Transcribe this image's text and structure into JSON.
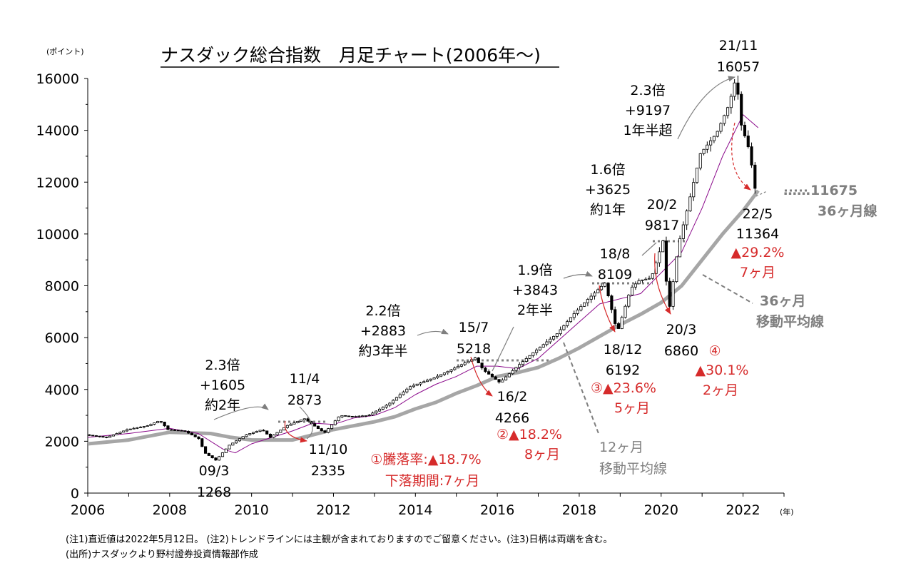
{
  "chart_data": {
    "type": "candlestick",
    "title": "ナスダック総合指数　月足チャート(2006年～)",
    "y_unit": "(ポイント)",
    "x_unit": "(年)",
    "ylim": [
      0,
      16000
    ],
    "y_ticks": [
      "0",
      "2000",
      "4000",
      "6000",
      "8000",
      "10000",
      "12000",
      "14000",
      "16000"
    ],
    "xlim": [
      2006,
      2023
    ],
    "x_ticks": [
      "2006",
      "2008",
      "2010",
      "2012",
      "2014",
      "2016",
      "2018",
      "2020",
      "2022"
    ],
    "series": [
      {
        "name": "月足 終値",
        "points": [
          [
            2006.0,
            2250
          ],
          [
            2006.5,
            2150
          ],
          [
            2007.0,
            2450
          ],
          [
            2007.5,
            2600
          ],
          [
            2007.8,
            2800
          ],
          [
            2008.0,
            2450
          ],
          [
            2008.4,
            2400
          ],
          [
            2008.75,
            2100
          ],
          [
            2008.9,
            1550
          ],
          [
            2009.17,
            1268
          ],
          [
            2009.5,
            1850
          ],
          [
            2009.9,
            2250
          ],
          [
            2010.3,
            2450
          ],
          [
            2010.5,
            2150
          ],
          [
            2010.9,
            2600
          ],
          [
            2011.33,
            2873
          ],
          [
            2011.7,
            2450
          ],
          [
            2011.83,
            2335
          ],
          [
            2012.2,
            3000
          ],
          [
            2012.5,
            2950
          ],
          [
            2012.9,
            3000
          ],
          [
            2013.4,
            3450
          ],
          [
            2013.9,
            4100
          ],
          [
            2014.5,
            4450
          ],
          [
            2014.9,
            4750
          ],
          [
            2015.5,
            5218
          ],
          [
            2015.7,
            4750
          ],
          [
            2016.1,
            4266
          ],
          [
            2016.5,
            4850
          ],
          [
            2016.9,
            5400
          ],
          [
            2017.5,
            6150
          ],
          [
            2017.9,
            6900
          ],
          [
            2018.2,
            7400
          ],
          [
            2018.67,
            8109
          ],
          [
            2018.8,
            7300
          ],
          [
            2018.97,
            6192
          ],
          [
            2019.3,
            7900
          ],
          [
            2019.5,
            8200
          ],
          [
            2019.8,
            8300
          ],
          [
            2020.1,
            9817
          ],
          [
            2020.22,
            6860
          ],
          [
            2020.45,
            9500
          ],
          [
            2020.7,
            11100
          ],
          [
            2021.0,
            13100
          ],
          [
            2021.4,
            13900
          ],
          [
            2021.7,
            15000
          ],
          [
            2021.87,
            16057
          ],
          [
            2022.0,
            14200
          ],
          [
            2022.2,
            13200
          ],
          [
            2022.37,
            11364
          ]
        ]
      },
      {
        "name": "12ヶ月移動平均線",
        "points": [
          [
            2006.0,
            2150
          ],
          [
            2007.0,
            2300
          ],
          [
            2008.0,
            2500
          ],
          [
            2008.7,
            2300
          ],
          [
            2009.3,
            1700
          ],
          [
            2009.6,
            1550
          ],
          [
            2010.0,
            1900
          ],
          [
            2010.5,
            2150
          ],
          [
            2011.0,
            2400
          ],
          [
            2011.5,
            2700
          ],
          [
            2012.0,
            2650
          ],
          [
            2012.5,
            2900
          ],
          [
            2013.0,
            3000
          ],
          [
            2013.5,
            3300
          ],
          [
            2014.0,
            3800
          ],
          [
            2014.5,
            4200
          ],
          [
            2015.0,
            4500
          ],
          [
            2015.5,
            4900
          ],
          [
            2016.0,
            4900
          ],
          [
            2016.5,
            4800
          ],
          [
            2017.0,
            5200
          ],
          [
            2017.5,
            5900
          ],
          [
            2018.0,
            6600
          ],
          [
            2018.5,
            7300
          ],
          [
            2019.0,
            7500
          ],
          [
            2019.5,
            7700
          ],
          [
            2020.0,
            8500
          ],
          [
            2020.5,
            9300
          ],
          [
            2021.0,
            11000
          ],
          [
            2021.5,
            13000
          ],
          [
            2022.0,
            14600
          ],
          [
            2022.37,
            14100
          ]
        ]
      },
      {
        "name": "36ヶ月移動平均線",
        "points": [
          [
            2006.0,
            1900
          ],
          [
            2007.0,
            2050
          ],
          [
            2008.0,
            2350
          ],
          [
            2009.0,
            2300
          ],
          [
            2009.5,
            2150
          ],
          [
            2010.0,
            2050
          ],
          [
            2010.5,
            2050
          ],
          [
            2011.0,
            2050
          ],
          [
            2011.5,
            2250
          ],
          [
            2012.0,
            2450
          ],
          [
            2012.5,
            2600
          ],
          [
            2013.0,
            2750
          ],
          [
            2013.5,
            2950
          ],
          [
            2014.0,
            3250
          ],
          [
            2014.5,
            3500
          ],
          [
            2015.0,
            3850
          ],
          [
            2015.5,
            4150
          ],
          [
            2016.0,
            4500
          ],
          [
            2016.5,
            4650
          ],
          [
            2017.0,
            4850
          ],
          [
            2017.5,
            5200
          ],
          [
            2018.0,
            5600
          ],
          [
            2018.5,
            6050
          ],
          [
            2019.0,
            6500
          ],
          [
            2019.5,
            6900
          ],
          [
            2020.0,
            7350
          ],
          [
            2020.5,
            8000
          ],
          [
            2021.0,
            9000
          ],
          [
            2021.5,
            10000
          ],
          [
            2022.0,
            10900
          ],
          [
            2022.37,
            11675
          ]
        ]
      }
    ],
    "annotations": {
      "a_0903": [
        "09/3",
        "1268"
      ],
      "a_1104": [
        "11/4",
        "2873"
      ],
      "a_1110": [
        "11/10",
        "2335"
      ],
      "a_1507": [
        "15/7",
        "5218"
      ],
      "a_1602": [
        "16/2",
        "4266"
      ],
      "a_1808": [
        "18/8",
        "8109"
      ],
      "a_1812": [
        "18/12",
        "6192"
      ],
      "a_2002": [
        "20/2",
        "9817"
      ],
      "a_2003": [
        "20/3",
        "6860"
      ],
      "a_2111": [
        "21/11",
        "16057"
      ],
      "a_2205": [
        "22/5",
        "11364"
      ],
      "r1": [
        "2.3倍",
        "+1605",
        "約2年"
      ],
      "r2": [
        "2.2倍",
        "+2883",
        "約3年半"
      ],
      "r3": [
        "1.9倍",
        "+3843",
        "2年半"
      ],
      "r4": [
        "1.6倍",
        "+3625",
        "約1年"
      ],
      "r5": [
        "2.3倍",
        "+9197",
        "1年半超"
      ],
      "d1": [
        "①騰落率:▲18.7%",
        "下落期間:7ヶ月"
      ],
      "d2": [
        "②▲18.2%",
        "8ヶ月"
      ],
      "d3": [
        "③▲23.6%",
        "5ヶ月"
      ],
      "d4": [
        "④",
        "▲30.1%",
        "2ヶ月"
      ],
      "d5": [
        "▲29.2%",
        "7ヶ月"
      ],
      "ma36_value": "……11675",
      "ma36_short": "36ヶ月線",
      "ma36_label": [
        "36ヶ月",
        "移動平均線"
      ],
      "ma12_label": [
        "12ヶ月",
        "移動平均線"
      ]
    },
    "grid": false,
    "legend": "none"
  },
  "footnotes": [
    "(注1)直近値は2022年5月12日。 (注2)トレンドラインには主観が含まれておりますのでご留意ください。(注3)日柄は両端を含む。",
    "(出所)ナスダックより野村證券投資情報部作成"
  ],
  "colors": {
    "red": "#d62b2b",
    "gray_label": "#7f7f7f",
    "ma36": "#a6a6a6",
    "ma12": "#8b0a8b",
    "arrow": "#7f7f7f"
  }
}
